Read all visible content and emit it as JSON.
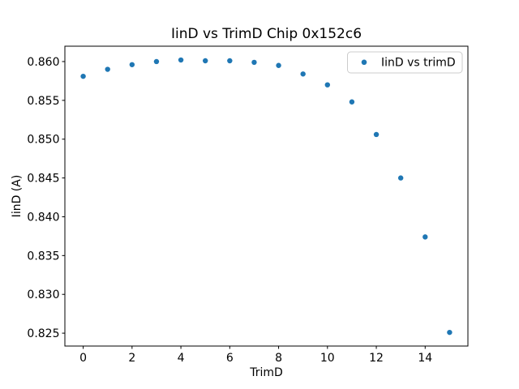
{
  "figure": {
    "background": "#ffffff",
    "text_color": "#000000",
    "spine_color": "#000000",
    "legend_border_color": "#cccccc"
  },
  "chart_data": {
    "type": "scatter",
    "title": "IinD vs TrimD Chip 0x152c6",
    "xlabel": "TrimD",
    "ylabel": "IinD (A)",
    "series": [
      {
        "name": "IinD vs trimD",
        "color": "#1f77b4",
        "marker": "circle",
        "x": [
          0,
          1,
          2,
          3,
          4,
          5,
          6,
          7,
          8,
          9,
          10,
          11,
          12,
          13,
          14,
          15
        ],
        "y": [
          0.8581,
          0.859,
          0.8596,
          0.86,
          0.8602,
          0.8601,
          0.8601,
          0.8599,
          0.8595,
          0.8584,
          0.857,
          0.8548,
          0.8506,
          0.845,
          0.8374,
          0.8251
        ]
      }
    ],
    "xlim": [
      -0.75,
      15.75
    ],
    "ylim": [
      0.82334,
      0.86198
    ],
    "xticks": [
      0,
      2,
      4,
      6,
      8,
      10,
      12,
      14
    ],
    "xtick_labels": [
      "0",
      "2",
      "4",
      "6",
      "8",
      "10",
      "12",
      "14"
    ],
    "yticks": [
      0.825,
      0.83,
      0.835,
      0.84,
      0.845,
      0.85,
      0.855,
      0.86
    ],
    "ytick_labels": [
      "0.825",
      "0.830",
      "0.835",
      "0.840",
      "0.845",
      "0.850",
      "0.855",
      "0.860"
    ],
    "grid": false,
    "legend": {
      "visible": true,
      "position": "upper right",
      "entries": [
        "IinD vs trimD"
      ]
    }
  }
}
